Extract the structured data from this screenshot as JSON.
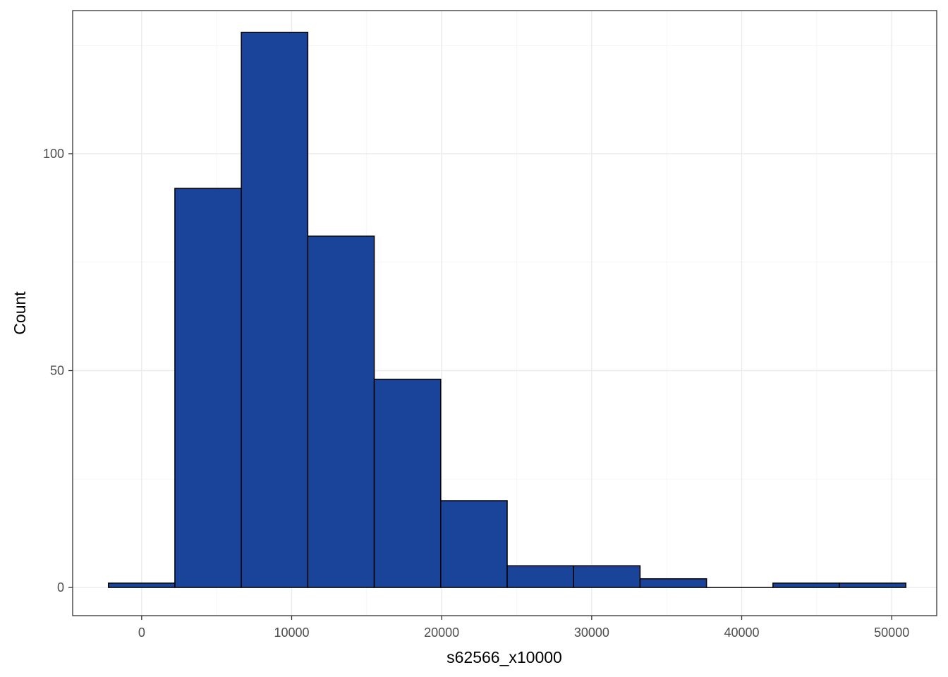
{
  "chart_data": {
    "type": "bar",
    "subtype": "histogram",
    "xlabel": "s62566_x10000",
    "ylabel": "Count",
    "xlim": [
      -4600,
      53000
    ],
    "ylim": [
      -6.5,
      133
    ],
    "x_ticks": [
      0,
      10000,
      20000,
      30000,
      40000,
      50000
    ],
    "y_ticks": [
      0,
      50,
      100
    ],
    "bins": [
      {
        "x0": -2215,
        "x1": 2215,
        "count": 1
      },
      {
        "x0": 2215,
        "x1": 6645,
        "count": 92
      },
      {
        "x0": 6645,
        "x1": 11075,
        "count": 128
      },
      {
        "x0": 11075,
        "x1": 15505,
        "count": 81
      },
      {
        "x0": 15505,
        "x1": 19935,
        "count": 48
      },
      {
        "x0": 19935,
        "x1": 24365,
        "count": 20
      },
      {
        "x0": 24365,
        "x1": 28795,
        "count": 5
      },
      {
        "x0": 28795,
        "x1": 33225,
        "count": 5
      },
      {
        "x0": 33225,
        "x1": 37655,
        "count": 2
      },
      {
        "x0": 37655,
        "x1": 42085,
        "count": 0
      },
      {
        "x0": 42085,
        "x1": 46515,
        "count": 1
      },
      {
        "x0": 46515,
        "x1": 50945,
        "count": 1
      }
    ],
    "fill_color": "#1a449a",
    "outline_color": "#000000",
    "grid": true,
    "legend": "none"
  }
}
